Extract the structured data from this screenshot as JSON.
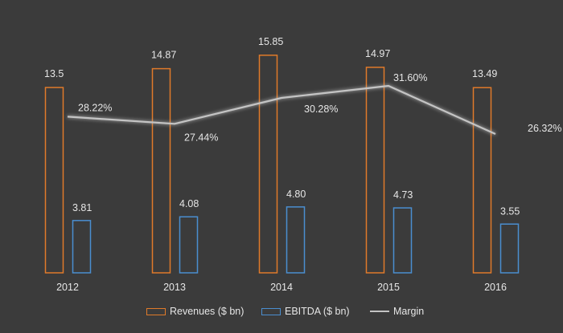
{
  "chart_data": {
    "type": "bar",
    "categories": [
      "2012",
      "2013",
      "2014",
      "2015",
      "2016"
    ],
    "series": [
      {
        "name": "Revenues ($ bn)",
        "kind": "bar",
        "color": "#e07a2a",
        "values": [
          13.5,
          14.87,
          15.85,
          14.97,
          13.49
        ],
        "labels": [
          "13.5",
          "14.87",
          "15.85",
          "14.97",
          "13.49"
        ]
      },
      {
        "name": "EBITDA ($ bn)",
        "kind": "bar",
        "color": "#4a8ed0",
        "values": [
          3.81,
          4.08,
          4.8,
          4.73,
          3.55
        ],
        "labels": [
          "3.81",
          "4.08",
          "4.80",
          "4.73",
          "3.55"
        ]
      },
      {
        "name": "Margin",
        "kind": "line",
        "color": "#c4c4c4",
        "values": [
          28.22,
          27.44,
          30.28,
          31.6,
          26.32
        ],
        "labels": [
          "28.22%",
          "27.44%",
          "30.28%",
          "31.60%",
          "26.32%"
        ]
      }
    ],
    "ylim": [
      0,
      16.6
    ],
    "margin_ylim": [
      15,
      40
    ],
    "title": "",
    "xlabel": "",
    "ylabel": "",
    "grid": false,
    "legend": "bottom"
  }
}
